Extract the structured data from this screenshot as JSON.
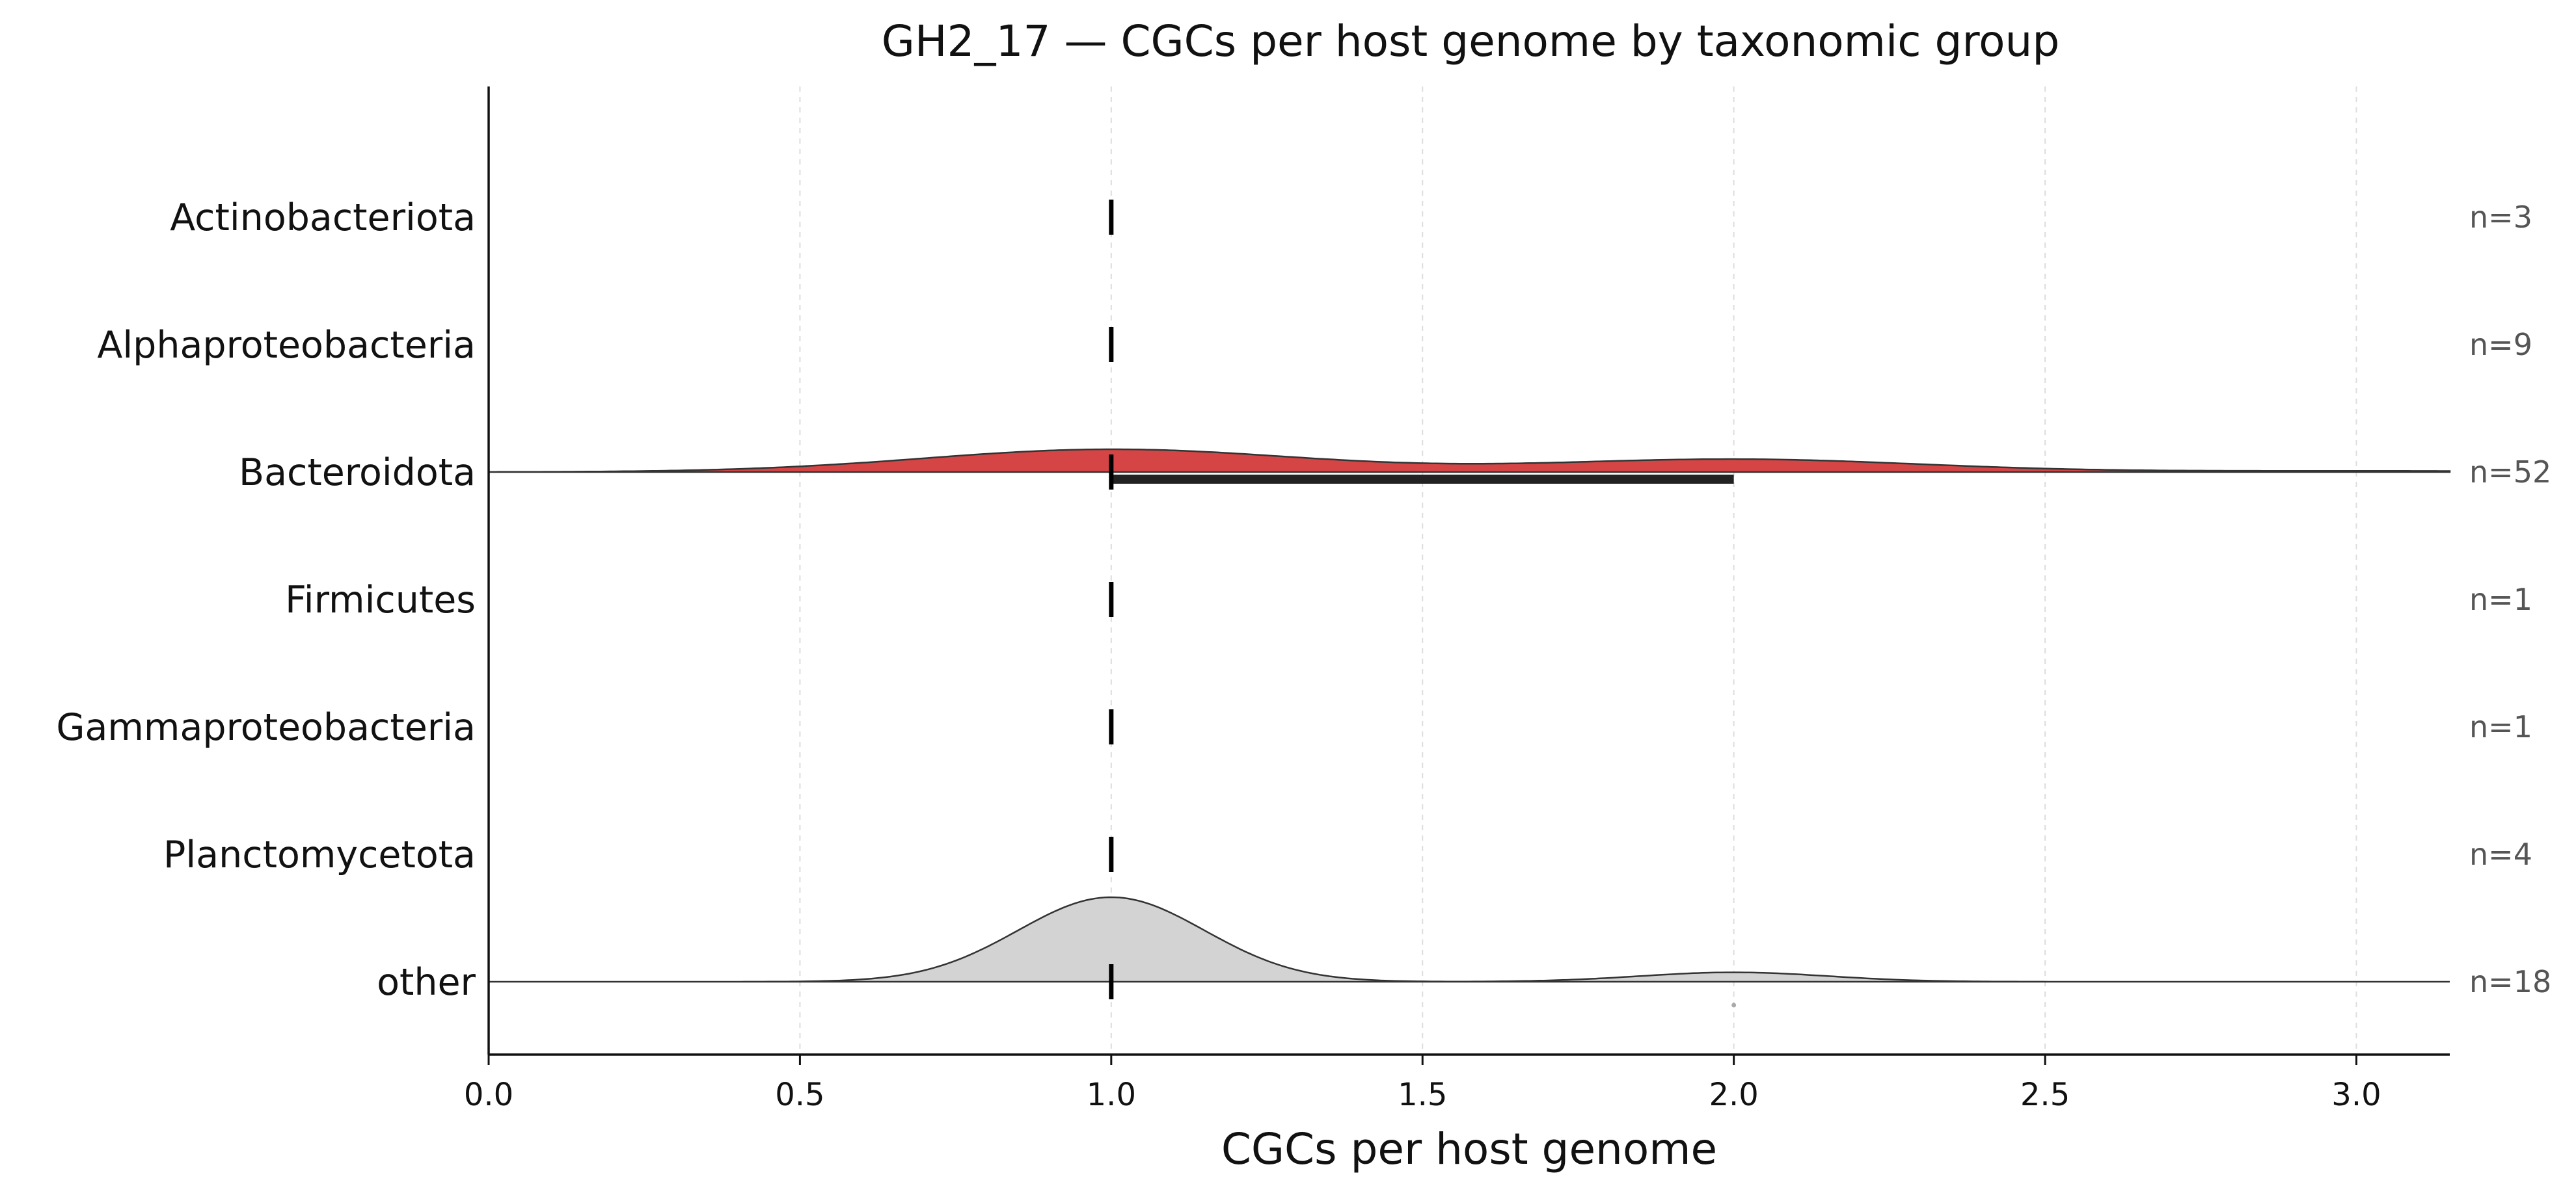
{
  "chart_data": {
    "type": "ridgeline",
    "title": "GH2_17 — CGCs per host genome by taxonomic group",
    "xlabel": "CGCs per host genome",
    "ylabel": "",
    "xlim": [
      0,
      3.15
    ],
    "xticks": [
      "0.0",
      "0.5",
      "1.0",
      "1.5",
      "2.0",
      "2.5",
      "3.0"
    ],
    "grid": "vertical dashed",
    "colors": {
      "highlight": "#d64545",
      "other": "#d3d3d3",
      "outline": "#333333"
    },
    "groups": [
      {
        "name": "Actinobacteriota",
        "n_label": "n=3",
        "median": 1.0,
        "iqr": [
          1.0,
          1.0
        ],
        "density": null
      },
      {
        "name": "Alphaproteobacteria",
        "n_label": "n=9",
        "median": 1.0,
        "iqr": [
          1.0,
          1.0
        ],
        "density": null
      },
      {
        "name": "Bacteroidota",
        "n_label": "n=52",
        "median": 1.0,
        "iqr": [
          1.0,
          2.0
        ],
        "density": {
          "fill": "highlight",
          "modes": [
            {
              "mu": 1.0,
              "sigma": 0.3,
              "w": 0.62
            },
            {
              "mu": 2.0,
              "sigma": 0.3,
              "w": 0.35
            },
            {
              "mu": 3.0,
              "sigma": 0.3,
              "w": 0.03
            }
          ]
        }
      },
      {
        "name": "Firmicutes",
        "n_label": "n=1",
        "median": 1.0,
        "iqr": [
          1.0,
          1.0
        ],
        "density": null
      },
      {
        "name": "Gammaproteobacteria",
        "n_label": "n=1",
        "median": 1.0,
        "iqr": [
          1.0,
          1.0
        ],
        "density": null
      },
      {
        "name": "Planctomycetota",
        "n_label": "n=4",
        "median": 1.0,
        "iqr": [
          1.0,
          1.0
        ],
        "density": null
      },
      {
        "name": "other",
        "n_label": "n=18",
        "median": 1.0,
        "iqr": [
          1.0,
          1.0
        ],
        "outliers": [
          2.0
        ],
        "density": {
          "fill": "other",
          "modes": [
            {
              "mu": 1.0,
              "sigma": 0.15,
              "w": 0.9
            },
            {
              "mu": 2.0,
              "sigma": 0.15,
              "w": 0.1
            }
          ]
        }
      }
    ]
  }
}
